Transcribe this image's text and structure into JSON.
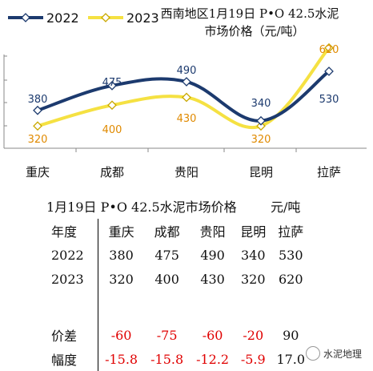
{
  "chart_data": {
    "type": "line",
    "title": "西南地区1月19日  P•O 42.5水泥市场价格（元/吨）",
    "title_line1": "西南地区1月19日  P•O 42.5水泥",
    "title_line2": "市场价格（元/吨）",
    "categories": [
      "重庆",
      "成都",
      "贵阳",
      "昆明",
      "拉萨"
    ],
    "series": [
      {
        "name": "2022",
        "values": [
          380,
          475,
          490,
          340,
          530
        ],
        "color": "#1c3a6e"
      },
      {
        "name": "2023",
        "values": [
          320,
          400,
          430,
          320,
          620
        ],
        "color": "#f5e142"
      }
    ],
    "ylim": [
      250,
      650
    ],
    "legend_position": "top-left",
    "grid": false
  },
  "table": {
    "title": "1月19日  P•O 42.5水泥市场价格",
    "unit": "元/吨",
    "header_label": "年度",
    "columns": [
      "重庆",
      "成都",
      "贵阳",
      "昆明",
      "拉萨"
    ],
    "rows": [
      {
        "label": "2022",
        "values": [
          "380",
          "475",
          "490",
          "340",
          "530"
        ]
      },
      {
        "label": "2023",
        "values": [
          "320",
          "400",
          "430",
          "320",
          "620"
        ]
      }
    ],
    "diff": {
      "label": "价差",
      "values": [
        "-60",
        "-75",
        "-60",
        "-20",
        "90"
      ]
    },
    "pct": {
      "label": "幅度",
      "values": [
        "-15.8",
        "-15.8",
        "-12.2",
        "-5.9",
        "17.0"
      ]
    }
  },
  "watermark": "水泥地理"
}
